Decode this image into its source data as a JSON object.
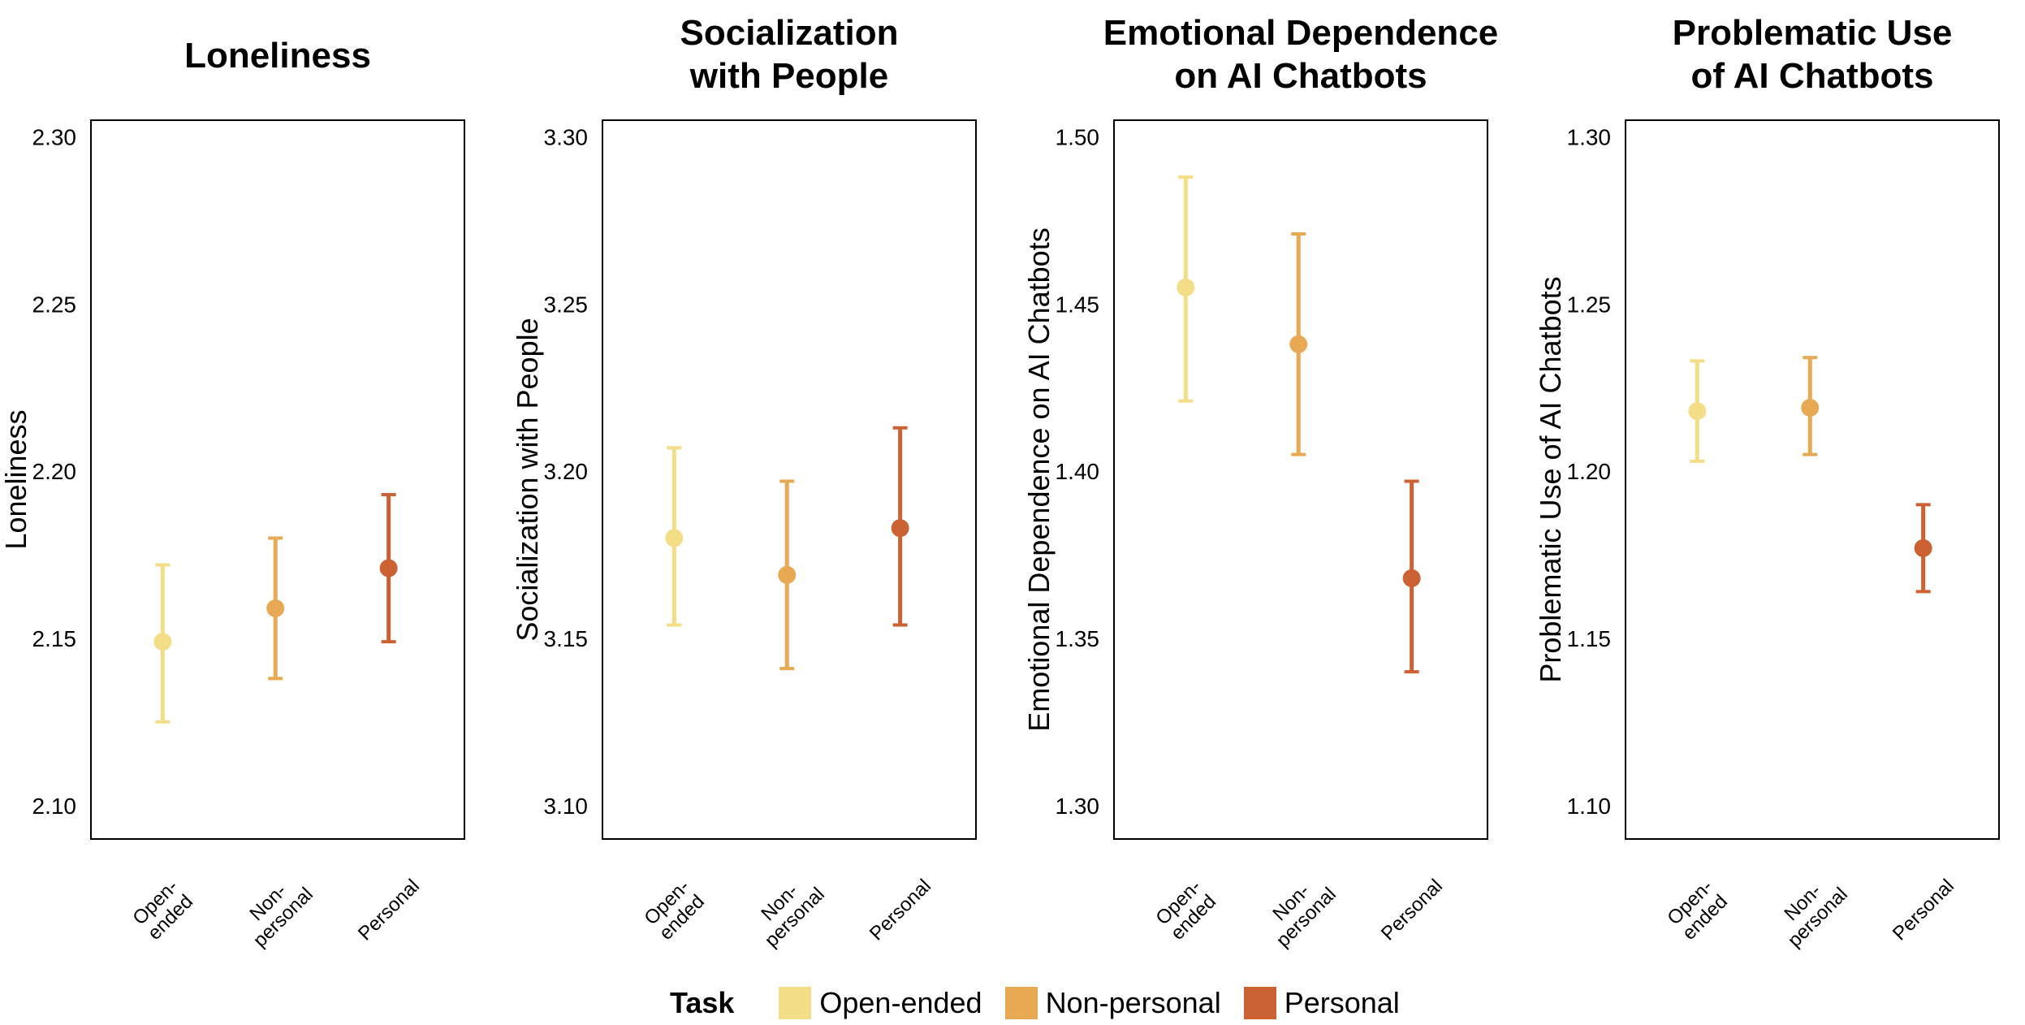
{
  "chart_data": [
    {
      "type": "scatter",
      "title": [
        "Loneliness"
      ],
      "ylabel": "Loneliness",
      "ylim": [
        2.09,
        2.305
      ],
      "yticks": [
        "2.10",
        "2.15",
        "2.20",
        "2.25",
        "2.30"
      ],
      "categories": [
        [
          "Open-",
          "ended"
        ],
        [
          "Non-",
          "personal"
        ],
        [
          "Personal"
        ]
      ],
      "points": [
        {
          "name": "Open-ended",
          "value": 2.149,
          "lower": 2.125,
          "upper": 2.172
        },
        {
          "name": "Non-personal",
          "value": 2.159,
          "lower": 2.138,
          "upper": 2.18
        },
        {
          "name": "Personal",
          "value": 2.171,
          "lower": 2.149,
          "upper": 2.193
        }
      ]
    },
    {
      "type": "scatter",
      "title": [
        "Socialization",
        "with People"
      ],
      "ylabel": "Socialization with People",
      "ylim": [
        3.09,
        3.305
      ],
      "yticks": [
        "3.10",
        "3.15",
        "3.20",
        "3.25",
        "3.30"
      ],
      "categories": [
        [
          "Open-",
          "ended"
        ],
        [
          "Non-",
          "personal"
        ],
        [
          "Personal"
        ]
      ],
      "points": [
        {
          "name": "Open-ended",
          "value": 3.18,
          "lower": 3.154,
          "upper": 3.207
        },
        {
          "name": "Non-personal",
          "value": 3.169,
          "lower": 3.141,
          "upper": 3.197
        },
        {
          "name": "Personal",
          "value": 3.183,
          "lower": 3.154,
          "upper": 3.213
        }
      ]
    },
    {
      "type": "scatter",
      "title": [
        "Emotional Dependence",
        "on AI Chatbots"
      ],
      "ylabel": "Emotional Dependence on AI Chatbots",
      "ylim": [
        1.29,
        1.505
      ],
      "yticks": [
        "1.30",
        "1.35",
        "1.40",
        "1.45",
        "1.50"
      ],
      "categories": [
        [
          "Open-",
          "ended"
        ],
        [
          "Non-",
          "personal"
        ],
        [
          "Personal"
        ]
      ],
      "points": [
        {
          "name": "Open-ended",
          "value": 1.455,
          "lower": 1.421,
          "upper": 1.488
        },
        {
          "name": "Non-personal",
          "value": 1.438,
          "lower": 1.405,
          "upper": 1.471
        },
        {
          "name": "Personal",
          "value": 1.368,
          "lower": 1.34,
          "upper": 1.397
        }
      ]
    },
    {
      "type": "scatter",
      "title": [
        "Problematic Use",
        "of AI Chatbots"
      ],
      "ylabel": "Problematic Use of AI Chatbots",
      "ylim": [
        1.09,
        1.305
      ],
      "yticks": [
        "1.10",
        "1.15",
        "1.20",
        "1.25",
        "1.30"
      ],
      "categories": [
        [
          "Open-",
          "ended"
        ],
        [
          "Non-",
          "personal"
        ],
        [
          "Personal"
        ]
      ],
      "points": [
        {
          "name": "Open-ended",
          "value": 1.218,
          "lower": 1.203,
          "upper": 1.233
        },
        {
          "name": "Non-personal",
          "value": 1.219,
          "lower": 1.205,
          "upper": 1.234
        },
        {
          "name": "Personal",
          "value": 1.177,
          "lower": 1.164,
          "upper": 1.19
        }
      ]
    }
  ],
  "legend": {
    "title": "Task",
    "entries": [
      {
        "label": "Open-ended",
        "color": "#F4DD87"
      },
      {
        "label": "Non-personal",
        "color": "#E7A954"
      },
      {
        "label": "Personal",
        "color": "#CC6134"
      }
    ]
  }
}
